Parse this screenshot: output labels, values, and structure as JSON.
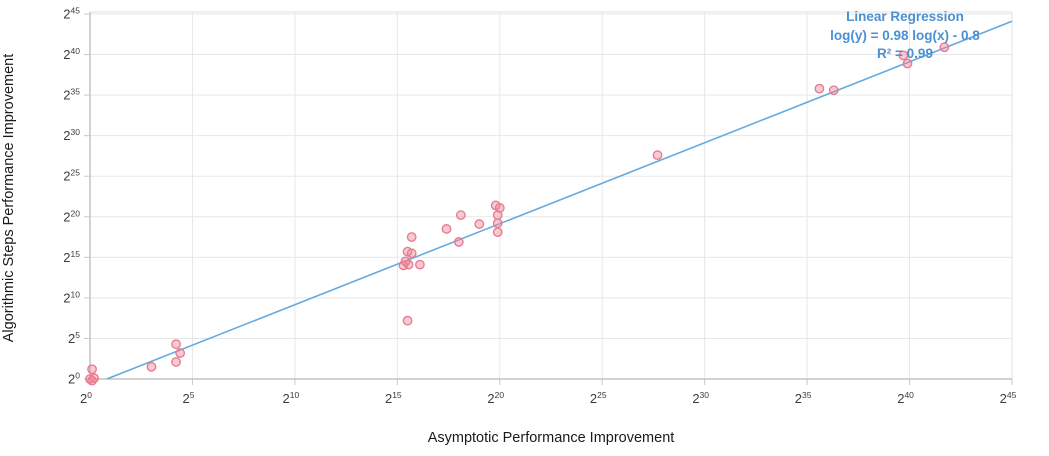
{
  "chart_data": {
    "type": "scatter",
    "title": "",
    "xlabel": "Asymptotic Performance Improvement",
    "ylabel": "Algorithmic Steps Performance Improvement",
    "x_scale": "log base 2",
    "y_scale": "log base 2",
    "tick_base": "2",
    "x_tick_exponents": [
      0,
      5,
      10,
      15,
      20,
      25,
      30,
      35,
      40,
      45
    ],
    "y_tick_exponents": [
      0,
      5,
      10,
      15,
      20,
      25,
      30,
      35,
      40,
      45
    ],
    "xlim_exponents": [
      0,
      45
    ],
    "ylim_exponents": [
      0,
      45
    ],
    "grid": true,
    "legend_position": "none",
    "points_log2": [
      [
        0.0,
        0.0
      ],
      [
        0.1,
        -0.2
      ],
      [
        0.2,
        0.1
      ],
      [
        0.1,
        1.2
      ],
      [
        3.0,
        1.5
      ],
      [
        4.2,
        4.3
      ],
      [
        4.4,
        3.2
      ],
      [
        4.2,
        2.1
      ],
      [
        15.5,
        7.2
      ],
      [
        15.3,
        14.0
      ],
      [
        15.55,
        14.1
      ],
      [
        16.1,
        14.1
      ],
      [
        15.4,
        14.5
      ],
      [
        15.5,
        15.7
      ],
      [
        15.7,
        15.5
      ],
      [
        15.7,
        17.5
      ],
      [
        17.4,
        18.5
      ],
      [
        18.0,
        16.9
      ],
      [
        18.1,
        20.2
      ],
      [
        19.0,
        19.1
      ],
      [
        19.8,
        21.4
      ],
      [
        20.0,
        21.1
      ],
      [
        19.9,
        20.2
      ],
      [
        19.9,
        19.2
      ],
      [
        19.9,
        18.1
      ],
      [
        27.7,
        27.6
      ],
      [
        35.6,
        35.8
      ],
      [
        36.3,
        35.6
      ],
      [
        39.7,
        39.9
      ],
      [
        39.9,
        38.9
      ],
      [
        41.7,
        40.9
      ]
    ],
    "regression": {
      "title": "Linear Regression",
      "equation": "log(y) = 0.98 log(x) - 0.8",
      "r2": "R² = 0.99",
      "slope": 0.98,
      "intercept": -0.8,
      "line_endpoints_log2": {
        "x1": 0.82,
        "y1": 0.0,
        "x2": 45.0,
        "y2": 44.1
      }
    },
    "colors": {
      "point_fill": "rgba(238,130,152,0.42)",
      "point_stroke": "#e77c8f",
      "regression_line": "#68aadd",
      "annotation_text": "#4a90d2",
      "grid": "#e7e7e7",
      "plot_border": "#e2e2e2",
      "axis_line": "#a6a6a6",
      "tick_mark": "#c9c9c9",
      "tick_label": "#3c3c3c",
      "axis_title": "#1a1a1a"
    }
  }
}
